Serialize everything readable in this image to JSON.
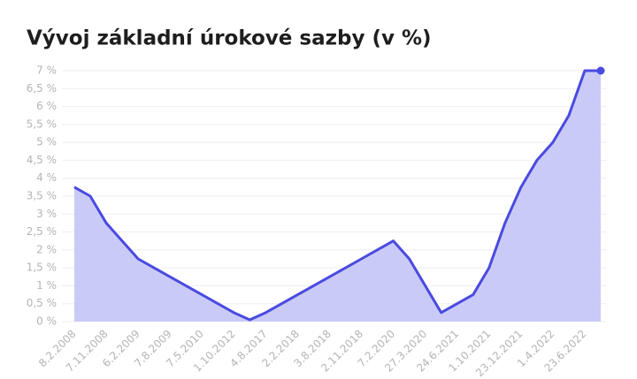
{
  "chart_data": {
    "type": "area",
    "title": "Vývoj základní úrokové sazby (v %)",
    "categories": [
      "8.2.2008",
      null,
      "7.11.2008",
      null,
      "6.2.2009",
      null,
      "7.8.2009",
      null,
      "7.5.2010",
      null,
      "1.10.2012",
      null,
      "4.8.2017",
      null,
      "2.2.2018",
      null,
      "3.8.2018",
      null,
      "2.11.2018",
      null,
      "7.2.2020",
      null,
      "27.3.2020",
      null,
      "24.6.2021",
      null,
      "1.10.2021",
      null,
      "23.12.2021",
      null,
      "1.4.2022",
      null,
      "23.6.2022",
      null
    ],
    "values": [
      3.75,
      3.5,
      2.75,
      2.25,
      1.75,
      1.5,
      1.25,
      1.0,
      0.75,
      0.5,
      0.25,
      0.05,
      0.25,
      0.5,
      0.75,
      1.0,
      1.25,
      1.5,
      1.75,
      2.0,
      2.25,
      1.75,
      1.0,
      0.25,
      0.5,
      0.75,
      1.5,
      2.75,
      3.75,
      4.5,
      5.0,
      5.75,
      7.0,
      7.0
    ],
    "color": "#4a4ae0",
    "fill_color": "#c4c4f6",
    "ylim": [
      0,
      7
    ],
    "yticks": [
      {
        "value": 0,
        "label": "0 %"
      },
      {
        "value": 0.5,
        "label": "0,5 %"
      },
      {
        "value": 1,
        "label": "1 %"
      },
      {
        "value": 1.5,
        "label": "1,5 %"
      },
      {
        "value": 2,
        "label": "2 %"
      },
      {
        "value": 2.5,
        "label": "2,5 %"
      },
      {
        "value": 3,
        "label": "3 %"
      },
      {
        "value": 3.5,
        "label": "3,5 %"
      },
      {
        "value": 4,
        "label": "4 %"
      },
      {
        "value": 4.5,
        "label": "4,5 %"
      },
      {
        "value": 5,
        "label": "5 %"
      },
      {
        "value": 5.5,
        "label": "5,5 %"
      },
      {
        "value": 6,
        "label": "6 %"
      },
      {
        "value": 6.5,
        "label": "6,5 %"
      },
      {
        "value": 7,
        "label": "7 %"
      }
    ],
    "grid": true
  }
}
